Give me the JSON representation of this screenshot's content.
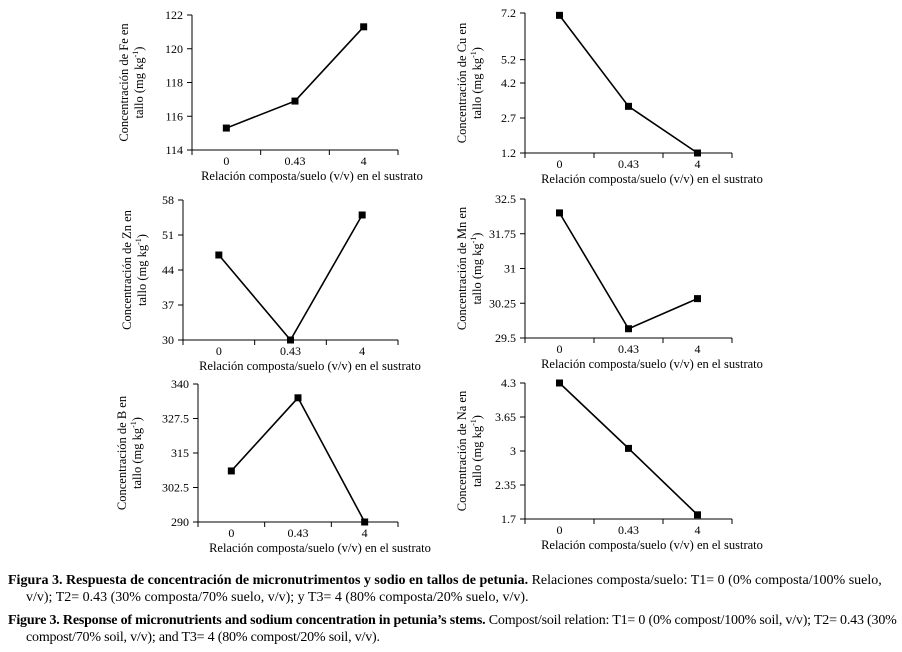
{
  "chart_data": [
    {
      "type": "line",
      "categories": [
        "0",
        "0.43",
        "4"
      ],
      "values": [
        115.3,
        116.9,
        121.3
      ],
      "ylabel_line1": "Concentración de Fe en",
      "ylabel_line2": "tallo (mg kg",
      "ylabel_sup": "-1",
      "ylabel_end": ")",
      "xlabel": "Relación composta/suelo (v/v) en el sustrato",
      "ylim": [
        114,
        122
      ],
      "yticks": [
        114,
        116,
        118,
        120,
        122
      ],
      "ytick_labels": [
        "114",
        "116",
        "118",
        "120",
        "122"
      ],
      "grid": false
    },
    {
      "type": "line",
      "categories": [
        "0",
        "0.43",
        "4"
      ],
      "values": [
        7.1,
        3.2,
        1.2
      ],
      "ylabel_line1": "Concentración de Cu en",
      "ylabel_line2": "tallo (mg kg",
      "ylabel_sup": "-1",
      "ylabel_end": ")",
      "xlabel": "Relación composta/suelo (v/v) en el sustrato",
      "ylim": [
        1.2,
        7.2
      ],
      "yticks": [
        1.2,
        2.7,
        4.2,
        5.2,
        7.2
      ],
      "ytick_labels": [
        "1.2",
        "2.7",
        "4.2",
        "5.2",
        "7.2"
      ],
      "grid": false
    },
    {
      "type": "line",
      "categories": [
        "0",
        "0.43",
        "4"
      ],
      "values": [
        47,
        30,
        55
      ],
      "ylabel_line1": "Concentración de Zn en",
      "ylabel_line2": "tallo (mg kg",
      "ylabel_sup": "-1",
      "ylabel_end": ")",
      "xlabel": "Relación composta/suelo (v/v) en el sustrato",
      "ylim": [
        30,
        58
      ],
      "yticks": [
        30,
        37,
        44,
        51,
        58
      ],
      "ytick_labels": [
        "30",
        "37",
        "44",
        "51",
        "58"
      ],
      "grid": false
    },
    {
      "type": "line",
      "categories": [
        "0",
        "0.43",
        "4"
      ],
      "values": [
        32.2,
        29.7,
        30.35
      ],
      "ylabel_line1": "Concentración de Mn en",
      "ylabel_line2": "tallo (mg kg",
      "ylabel_sup": "-1",
      "ylabel_end": ")",
      "xlabel": "Relación composta/suelo (v/v) en el sustrato",
      "ylim": [
        29.5,
        32.5
      ],
      "yticks": [
        29.5,
        30.25,
        31,
        31.75,
        32.5
      ],
      "ytick_labels": [
        "29.5",
        "30.25",
        "31",
        "31.75",
        "32.5"
      ],
      "grid": false
    },
    {
      "type": "line",
      "categories": [
        "0",
        "0.43",
        "4"
      ],
      "values": [
        308.5,
        335,
        290
      ],
      "ylabel_line1": "Concentración de B en",
      "ylabel_line2": "tallo (mg kg",
      "ylabel_sup": "-1",
      "ylabel_end": ")",
      "xlabel": "Relación composta/suelo (v/v) en el sustrato",
      "ylim": [
        290,
        340
      ],
      "yticks": [
        290,
        302.5,
        315,
        327.5,
        340
      ],
      "ytick_labels": [
        "290",
        "302.5",
        "315",
        "327.5",
        "340"
      ],
      "grid": false
    },
    {
      "type": "line",
      "categories": [
        "0",
        "0.43",
        "4"
      ],
      "values": [
        4.3,
        3.05,
        1.78
      ],
      "ylabel_line1": "Concentración de Na en",
      "ylabel_line2": "tallo (mg kg",
      "ylabel_sup": "-1",
      "ylabel_end": ")",
      "xlabel": "Relación composta/suelo (v/v) en el sustrato",
      "ylim": [
        1.7,
        4.3
      ],
      "yticks": [
        1.7,
        2.35,
        3,
        3.65,
        4.3
      ],
      "ytick_labels": [
        "1.7",
        "2.35",
        "3",
        "3.65",
        "4.3"
      ],
      "grid": false
    }
  ],
  "caption": {
    "es_lead": "Figura 3. Respuesta de concentración de micronutrimentos y sodio en tallos de petunia.",
    "es_text": " Relaciones composta/suelo: T1= 0 (0% composta/100% suelo, v/v); T2= 0.43 (30% composta/70% suelo, v/v); y T3= 4 (80% composta/20% suelo, v/v).",
    "en_lead": "Figure 3. Response of micronutrients and sodium concentration in petunia’s stems.",
    "en_text": " Compost/soil relation: T1= 0 (0% compost/100% soil, v/v); T2= 0.43 (30% compost/70% soil, v/v); and T3= 4 (80% compost/20% soil, v/v)."
  }
}
